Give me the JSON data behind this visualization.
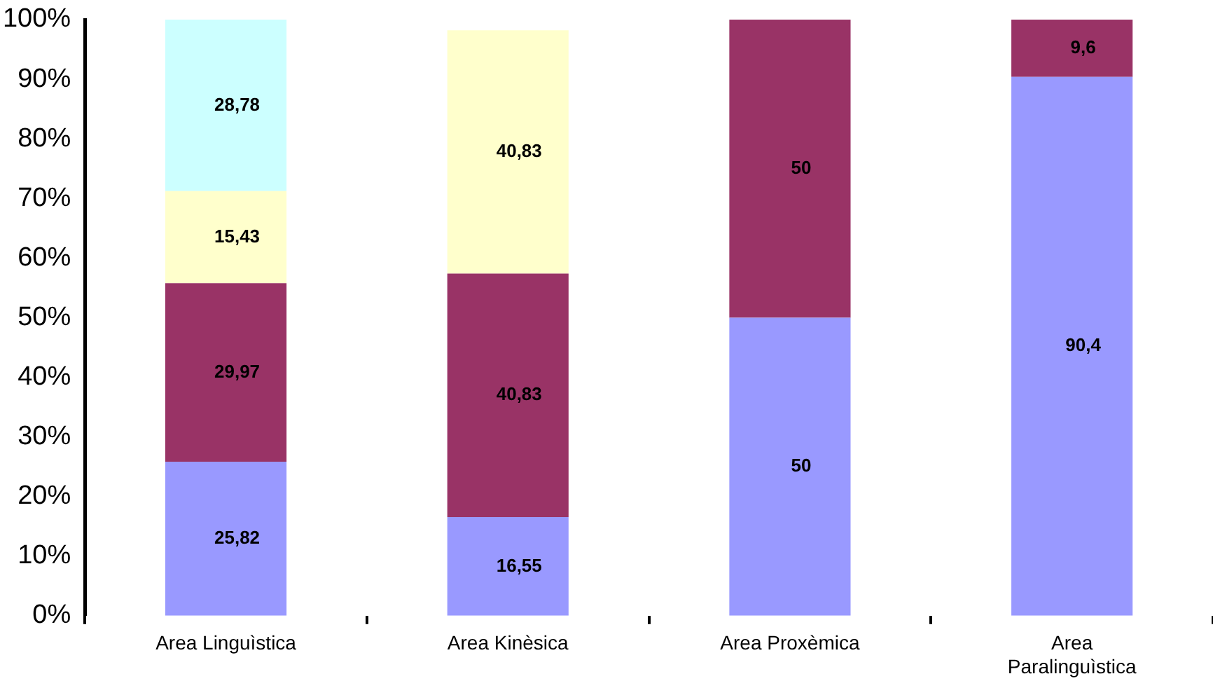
{
  "chart_data": {
    "type": "bar",
    "stacked": true,
    "categories": [
      "Area Linguìstica",
      "Area Kinèsica",
      "Area Proxèmica",
      "Area Paralinguìstica"
    ],
    "series": [
      {
        "color": "#9999ff",
        "values": [
          25.82,
          16.55,
          50,
          90.4
        ],
        "value_labels": [
          "25,82",
          "16,55",
          "50",
          "90,4"
        ]
      },
      {
        "color": "#993366",
        "values": [
          29.97,
          40.83,
          50,
          9.6
        ],
        "value_labels": [
          "29,97",
          "40,83",
          "50",
          "9,6"
        ]
      },
      {
        "color": "#ffffcc",
        "values": [
          15.43,
          40.83,
          null,
          null
        ],
        "value_labels": [
          "15,43",
          "40,83",
          null,
          null
        ]
      },
      {
        "color": "#ccffff",
        "values": [
          28.78,
          null,
          null,
          null
        ],
        "value_labels": [
          "28,78",
          null,
          null,
          null
        ]
      }
    ],
    "ylim": [
      0,
      100
    ],
    "yticks": [
      {
        "value": 0,
        "label": "0%"
      },
      {
        "value": 10,
        "label": "10%"
      },
      {
        "value": 20,
        "label": "20%"
      },
      {
        "value": 30,
        "label": "30%"
      },
      {
        "value": 40,
        "label": "40%"
      },
      {
        "value": 50,
        "label": "50%"
      },
      {
        "value": 60,
        "label": "60%"
      },
      {
        "value": 70,
        "label": "70%"
      },
      {
        "value": 80,
        "label": "80%"
      },
      {
        "value": 90,
        "label": "90%"
      },
      {
        "value": 100,
        "label": "100%"
      }
    ],
    "legend": false
  }
}
